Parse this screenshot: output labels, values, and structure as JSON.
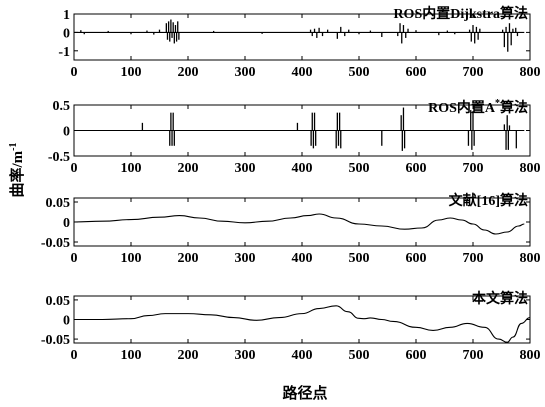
{
  "chart_data": {
    "type": "line",
    "xlabel": "路径点",
    "ylabel": "曲率/m",
    "ylabel_sup": "-1",
    "panels": [
      {
        "title": "ROS内置Dijkstra算法",
        "xlim": [
          0,
          800
        ],
        "ylim": [
          -1.5,
          1
        ],
        "xticks": [
          0,
          100,
          200,
          300,
          400,
          500,
          600,
          700,
          800
        ],
        "yticks": [
          1,
          0,
          -1
        ],
        "ytick_labels": [
          "1",
          "0",
          "-1"
        ],
        "baseline": 0,
        "spikes": [
          [
            12,
            0.12
          ],
          [
            18,
            -0.1
          ],
          [
            60,
            0.08
          ],
          [
            100,
            -0.1
          ],
          [
            128,
            0.1
          ],
          [
            140,
            -0.12
          ],
          [
            150,
            0.15
          ],
          [
            162,
            0.5
          ],
          [
            164,
            -0.4
          ],
          [
            166,
            0.6
          ],
          [
            168,
            -0.5
          ],
          [
            170,
            0.7
          ],
          [
            172,
            -0.3
          ],
          [
            174,
            0.55
          ],
          [
            176,
            -0.6
          ],
          [
            178,
            0.4
          ],
          [
            180,
            -0.5
          ],
          [
            182,
            0.6
          ],
          [
            184,
            -0.4
          ],
          [
            245,
            0.08
          ],
          [
            330,
            -0.08
          ],
          [
            415,
            0.15
          ],
          [
            418,
            -0.2
          ],
          [
            422,
            0.2
          ],
          [
            426,
            -0.3
          ],
          [
            430,
            0.25
          ],
          [
            436,
            -0.2
          ],
          [
            445,
            0.15
          ],
          [
            462,
            -0.35
          ],
          [
            468,
            0.3
          ],
          [
            475,
            -0.2
          ],
          [
            482,
            0.15
          ],
          [
            500,
            -0.1
          ],
          [
            520,
            0.1
          ],
          [
            540,
            -0.25
          ],
          [
            568,
            -0.2
          ],
          [
            572,
            0.5
          ],
          [
            575,
            -0.6
          ],
          [
            578,
            0.4
          ],
          [
            582,
            -0.3
          ],
          [
            586,
            0.2
          ],
          [
            600,
            0.12
          ],
          [
            640,
            -0.15
          ],
          [
            655,
            0.1
          ],
          [
            668,
            -0.1
          ],
          [
            694,
            0.15
          ],
          [
            697,
            -0.5
          ],
          [
            700,
            0.4
          ],
          [
            703,
            -0.6
          ],
          [
            706,
            0.3
          ],
          [
            709,
            -0.4
          ],
          [
            712,
            0.2
          ],
          [
            752,
            0.15
          ],
          [
            755,
            -0.8
          ],
          [
            758,
            0.3
          ],
          [
            761,
            -1.05
          ],
          [
            764,
            0.5
          ],
          [
            767,
            -0.7
          ],
          [
            770,
            0.2
          ],
          [
            775,
            0.25
          ],
          [
            778,
            -0.2
          ]
        ]
      },
      {
        "title": "ROS内置A",
        "title_sup": "*",
        "title_suffix": "算法",
        "xlim": [
          0,
          800
        ],
        "ylim": [
          -0.5,
          0.5
        ],
        "xticks": [
          0,
          100,
          200,
          300,
          400,
          500,
          600,
          700,
          800
        ],
        "yticks": [
          0.5,
          0,
          -0.5
        ],
        "ytick_labels": [
          "0.5",
          "0",
          "-0.5"
        ],
        "baseline": 0,
        "spikes": [
          [
            120,
            0.15
          ],
          [
            168,
            -0.3
          ],
          [
            170,
            0.35
          ],
          [
            172,
            -0.3
          ],
          [
            174,
            0.35
          ],
          [
            176,
            -0.3
          ],
          [
            392,
            0.15
          ],
          [
            416,
            -0.3
          ],
          [
            418,
            0.35
          ],
          [
            420,
            -0.35
          ],
          [
            422,
            0.35
          ],
          [
            424,
            -0.3
          ],
          [
            460,
            -0.35
          ],
          [
            462,
            0.35
          ],
          [
            464,
            -0.3
          ],
          [
            466,
            0.35
          ],
          [
            468,
            -0.35
          ],
          [
            540,
            -0.3
          ],
          [
            574,
            0.3
          ],
          [
            576,
            -0.4
          ],
          [
            578,
            0.45
          ],
          [
            580,
            -0.35
          ],
          [
            692,
            -0.3
          ],
          [
            696,
            0.4
          ],
          [
            698,
            -0.38
          ],
          [
            700,
            0.38
          ],
          [
            702,
            -0.3
          ],
          [
            755,
            0.12
          ],
          [
            758,
            -0.38
          ],
          [
            760,
            0.3
          ],
          [
            762,
            -0.38
          ],
          [
            764,
            0.1
          ],
          [
            776,
            -0.35
          ]
        ]
      },
      {
        "title": "文献[16]算法",
        "xlim": [
          0,
          800
        ],
        "ylim": [
          -0.06,
          0.06
        ],
        "xticks": [
          0,
          100,
          200,
          300,
          400,
          500,
          600,
          700,
          800
        ],
        "yticks": [
          0.05,
          0,
          -0.05
        ],
        "ytick_labels": [
          "0.05",
          "0",
          "-0.05"
        ],
        "x": [
          0,
          50,
          100,
          150,
          185,
          220,
          260,
          300,
          340,
          380,
          410,
          430,
          460,
          500,
          540,
          580,
          610,
          640,
          660,
          680,
          700,
          720,
          740,
          760,
          780,
          790
        ],
        "y": [
          0,
          0.002,
          0.006,
          0.012,
          0.016,
          0.01,
          0.002,
          -0.002,
          0.002,
          0.01,
          0.016,
          0.02,
          0.01,
          -0.005,
          -0.01,
          -0.018,
          -0.015,
          0.005,
          0.01,
          0.005,
          -0.005,
          -0.02,
          -0.03,
          -0.025,
          -0.01,
          -0.005
        ]
      },
      {
        "title": "本文算法",
        "xlim": [
          0,
          800
        ],
        "ylim": [
          -0.06,
          0.06
        ],
        "xticks": [
          0,
          100,
          200,
          300,
          400,
          500,
          600,
          700,
          800
        ],
        "yticks": [
          0.05,
          0,
          -0.05
        ],
        "ytick_labels": [
          "0.05",
          "0",
          "-0.05"
        ],
        "x": [
          0,
          50,
          100,
          130,
          160,
          200,
          240,
          280,
          320,
          360,
          400,
          430,
          460,
          480,
          500,
          510,
          520,
          540,
          560,
          600,
          630,
          660,
          690,
          720,
          745,
          760,
          770,
          785,
          800
        ],
        "y": [
          0,
          0,
          0.002,
          0.01,
          0.015,
          0.015,
          0.012,
          0.005,
          -0.002,
          0.005,
          0.015,
          0.028,
          0.035,
          0.02,
          0.003,
          0.002,
          0.004,
          0.0,
          -0.005,
          -0.02,
          -0.028,
          -0.02,
          -0.01,
          -0.02,
          -0.05,
          -0.058,
          -0.045,
          -0.01,
          0.005
        ]
      }
    ]
  }
}
